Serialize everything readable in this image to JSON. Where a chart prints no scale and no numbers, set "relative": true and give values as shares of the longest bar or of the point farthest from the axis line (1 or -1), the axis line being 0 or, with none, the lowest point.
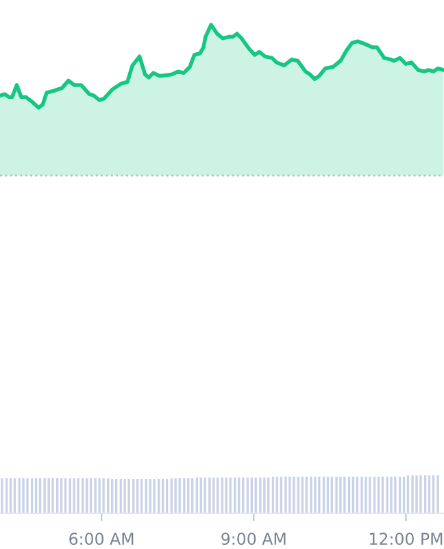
{
  "chart_data": [
    {
      "type": "area",
      "relative": true,
      "color": "#16c784",
      "xlim": [
        4,
        12.75
      ],
      "tick_labels": false,
      "x": [
        4.0,
        4.09,
        4.18,
        4.24,
        4.33,
        4.42,
        4.51,
        4.63,
        4.76,
        4.84,
        4.92,
        5.04,
        5.22,
        5.35,
        5.46,
        5.6,
        5.76,
        5.85,
        5.96,
        6.05,
        6.21,
        6.39,
        6.51,
        6.61,
        6.75,
        6.86,
        6.93,
        7.02,
        7.15,
        7.38,
        7.51,
        7.62,
        7.74,
        7.83,
        7.94,
        8.01,
        8.05,
        8.16,
        8.28,
        8.39,
        8.51,
        8.59,
        8.67,
        8.76,
        8.91,
        9.02,
        9.11,
        9.22,
        9.36,
        9.45,
        9.6,
        9.75,
        9.87,
        10.02,
        10.11,
        10.2,
        10.29,
        10.41,
        10.56,
        10.71,
        10.83,
        10.94,
        11.05,
        11.21,
        11.34,
        11.43,
        11.57,
        11.7,
        11.76,
        11.88,
        12.0,
        12.11,
        12.24,
        12.36,
        12.45,
        12.54,
        12.63,
        12.74
      ],
      "values": [
        0.53,
        0.54,
        0.52,
        0.52,
        0.6,
        0.52,
        0.52,
        0.49,
        0.45,
        0.47,
        0.55,
        0.56,
        0.58,
        0.63,
        0.6,
        0.6,
        0.54,
        0.53,
        0.5,
        0.51,
        0.57,
        0.61,
        0.62,
        0.73,
        0.79,
        0.67,
        0.65,
        0.68,
        0.66,
        0.67,
        0.69,
        0.68,
        0.72,
        0.8,
        0.81,
        0.85,
        0.92,
        1.0,
        0.94,
        0.91,
        0.92,
        0.92,
        0.94,
        0.91,
        0.84,
        0.8,
        0.82,
        0.79,
        0.78,
        0.75,
        0.73,
        0.77,
        0.76,
        0.69,
        0.67,
        0.64,
        0.66,
        0.71,
        0.72,
        0.76,
        0.83,
        0.88,
        0.89,
        0.87,
        0.85,
        0.85,
        0.78,
        0.77,
        0.76,
        0.78,
        0.74,
        0.75,
        0.7,
        0.69,
        0.7,
        0.69,
        0.71,
        0.7
      ],
      "ref_lines": [
        {
          "axis": "y",
          "value": 0,
          "color": "#b8bcc4",
          "line_style": "dotted"
        }
      ]
    },
    {
      "type": "bar",
      "relative": true,
      "color": "#c9d2e6",
      "xlim": [
        4,
        12.75
      ],
      "tick_labels": "x",
      "xticks": [
        {
          "value": 6,
          "label": "6:00 AM"
        },
        {
          "value": 9,
          "label": "9:00 AM"
        },
        {
          "value": 12,
          "label": "12:00 PM"
        }
      ],
      "x": [
        4.04,
        4.13,
        4.21,
        4.29,
        4.38,
        4.46,
        4.54,
        4.63,
        4.71,
        4.79,
        4.88,
        4.96,
        5.04,
        5.13,
        5.21,
        5.29,
        5.38,
        5.46,
        5.54,
        5.63,
        5.71,
        5.79,
        5.88,
        5.96,
        6.04,
        6.13,
        6.21,
        6.29,
        6.38,
        6.46,
        6.54,
        6.63,
        6.71,
        6.79,
        6.88,
        6.96,
        7.04,
        7.13,
        7.21,
        7.29,
        7.38,
        7.46,
        7.54,
        7.63,
        7.71,
        7.79,
        7.88,
        7.96,
        8.04,
        8.13,
        8.21,
        8.29,
        8.38,
        8.46,
        8.54,
        8.63,
        8.71,
        8.79,
        8.88,
        8.96,
        9.04,
        9.13,
        9.21,
        9.29,
        9.38,
        9.46,
        9.54,
        9.63,
        9.71,
        9.79,
        9.88,
        9.96,
        10.04,
        10.13,
        10.21,
        10.29,
        10.38,
        10.46,
        10.54,
        10.63,
        10.71,
        10.79,
        10.88,
        10.96,
        11.04,
        11.13,
        11.21,
        11.29,
        11.38,
        11.46,
        11.54,
        11.63,
        11.71,
        11.79,
        11.88,
        11.96,
        12.04,
        12.13,
        12.21,
        12.29,
        12.38,
        12.46,
        12.54,
        12.63
      ],
      "values": [
        0.92,
        0.92,
        0.92,
        0.92,
        0.92,
        0.92,
        0.92,
        0.92,
        0.92,
        0.92,
        0.92,
        0.92,
        0.92,
        0.92,
        0.92,
        0.92,
        0.92,
        0.92,
        0.92,
        0.92,
        0.92,
        0.92,
        0.92,
        0.92,
        0.92,
        0.92,
        0.9,
        0.9,
        0.9,
        0.9,
        0.9,
        0.9,
        0.9,
        0.9,
        0.9,
        0.9,
        0.9,
        0.9,
        0.9,
        0.9,
        0.92,
        0.92,
        0.92,
        0.92,
        0.92,
        0.92,
        0.94,
        0.94,
        0.94,
        0.94,
        0.94,
        0.94,
        0.94,
        0.94,
        0.94,
        0.94,
        0.94,
        0.94,
        0.94,
        0.94,
        0.94,
        0.94,
        0.94,
        0.94,
        0.96,
        0.96,
        0.96,
        0.96,
        0.96,
        0.96,
        0.96,
        0.96,
        0.96,
        0.96,
        0.96,
        0.96,
        0.96,
        0.96,
        0.96,
        0.96,
        0.96,
        0.96,
        0.96,
        0.96,
        0.96,
        0.96,
        0.96,
        0.96,
        0.96,
        0.96,
        0.96,
        0.96,
        0.96,
        0.96,
        0.96,
        0.96,
        1.0,
        1.0,
        1.0,
        1.0,
        1.0,
        1.0,
        1.0,
        1.0
      ]
    }
  ]
}
